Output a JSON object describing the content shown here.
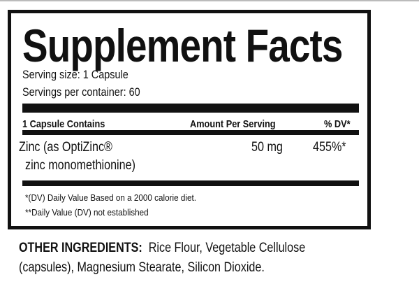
{
  "label": {
    "title": "Supplement Facts",
    "serving_size": "Serving size: 1 Capsule",
    "servings_per_container": "Servings per container: 60",
    "columns": [
      "1 Capsule Contains",
      "Amount Per Serving",
      "% DV*"
    ],
    "rows": [
      {
        "name_line1": "Zinc (as OptiZinc®",
        "name_line2": "zinc monomethionine)",
        "amount": "50 mg",
        "dv": "455%*"
      }
    ],
    "footnotes": [
      "*(DV) Daily Value Based on a 2000 calorie diet.",
      "**Daily Value (DV) not established"
    ]
  },
  "other_ingredients": {
    "heading": "OTHER INGREDIENTS:",
    "line1": "Rice Flour, Vegetable Cellulose",
    "line2": "(capsules), Magnesium Stearate, Silicon Dioxide."
  }
}
